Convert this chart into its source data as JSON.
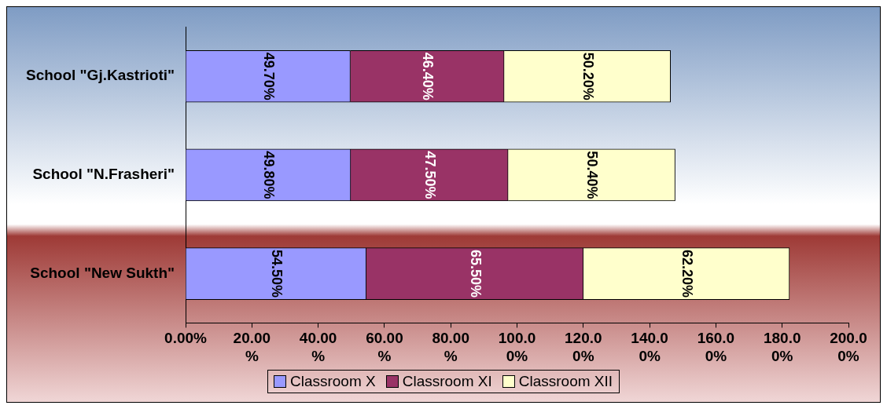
{
  "chart_data": {
    "type": "bar",
    "orientation": "horizontal",
    "stacked": true,
    "categories": [
      "School \"Gj.Kastrioti\"",
      "School \"N.Frasheri\"",
      "School \"New Sukth\""
    ],
    "series": [
      {
        "name": "Classroom X",
        "color": "#9999ff",
        "values": [
          49.7,
          49.8,
          54.5
        ],
        "value_labels": [
          "49.70%",
          "49.80%",
          "54.50%"
        ]
      },
      {
        "name": "Classroom XI",
        "color": "#993366",
        "values": [
          46.4,
          47.5,
          65.5
        ],
        "value_labels": [
          "46.40%",
          "47.50%",
          "65.50%"
        ]
      },
      {
        "name": "Classroom XII",
        "color": "#ffffcc",
        "values": [
          50.2,
          50.4,
          62.2
        ],
        "value_labels": [
          "50.20%",
          "50.40%",
          "62.20%"
        ]
      }
    ],
    "xlim": [
      0,
      200
    ],
    "xticks": [
      {
        "value": 0,
        "label": "0.00%"
      },
      {
        "value": 20,
        "label": "20.00%"
      },
      {
        "value": 40,
        "label": "40.00%"
      },
      {
        "value": 60,
        "label": "60.00%"
      },
      {
        "value": 80,
        "label": "80.00%"
      },
      {
        "value": 100,
        "label": "100.00%"
      },
      {
        "value": 120,
        "label": "120.00%"
      },
      {
        "value": 140,
        "label": "140.00%"
      },
      {
        "value": 160,
        "label": "160.00%"
      },
      {
        "value": 180,
        "label": "180.00%"
      },
      {
        "value": 200,
        "label": "200.00%"
      }
    ],
    "grid": false,
    "legend": "bottom"
  }
}
